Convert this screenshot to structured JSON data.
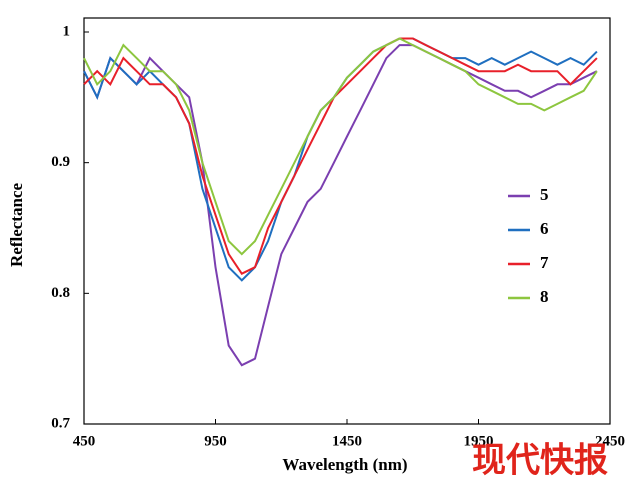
{
  "chart_data": {
    "type": "line",
    "x_label": "Wavelength (nm)",
    "y_label": "Reflectance",
    "x": [
      450,
      500,
      550,
      600,
      650,
      700,
      750,
      800,
      850,
      900,
      950,
      1000,
      1050,
      1100,
      1150,
      1200,
      1250,
      1300,
      1350,
      1400,
      1450,
      1500,
      1550,
      1600,
      1650,
      1700,
      1750,
      1800,
      1850,
      1900,
      1950,
      2000,
      2050,
      2100,
      2150,
      2200,
      2250,
      2300,
      2350,
      2400
    ],
    "series": [
      {
        "name": "5",
        "color": "#7b3fb0",
        "values": [
          0.97,
          0.95,
          0.98,
          0.97,
          0.96,
          0.98,
          0.97,
          0.96,
          0.95,
          0.9,
          0.82,
          0.76,
          0.745,
          0.75,
          0.79,
          0.83,
          0.85,
          0.87,
          0.88,
          0.9,
          0.92,
          0.94,
          0.96,
          0.98,
          0.99,
          0.99,
          0.985,
          0.98,
          0.975,
          0.97,
          0.965,
          0.96,
          0.955,
          0.955,
          0.95,
          0.955,
          0.96,
          0.96,
          0.965,
          0.97
        ]
      },
      {
        "name": "6",
        "color": "#1f6fc0",
        "values": [
          0.97,
          0.95,
          0.98,
          0.97,
          0.96,
          0.97,
          0.96,
          0.95,
          0.93,
          0.88,
          0.85,
          0.82,
          0.81,
          0.82,
          0.84,
          0.87,
          0.89,
          0.92,
          0.94,
          0.95,
          0.965,
          0.975,
          0.985,
          0.99,
          0.995,
          0.995,
          0.99,
          0.985,
          0.98,
          0.98,
          0.975,
          0.98,
          0.975,
          0.98,
          0.985,
          0.98,
          0.975,
          0.98,
          0.975,
          0.985
        ]
      },
      {
        "name": "7",
        "color": "#e8202a",
        "values": [
          0.96,
          0.97,
          0.96,
          0.98,
          0.97,
          0.96,
          0.96,
          0.95,
          0.93,
          0.89,
          0.86,
          0.83,
          0.815,
          0.82,
          0.85,
          0.87,
          0.89,
          0.91,
          0.93,
          0.95,
          0.96,
          0.97,
          0.98,
          0.99,
          0.995,
          0.995,
          0.99,
          0.985,
          0.98,
          0.975,
          0.97,
          0.97,
          0.97,
          0.975,
          0.97,
          0.97,
          0.97,
          0.96,
          0.97,
          0.98
        ]
      },
      {
        "name": "8",
        "color": "#8dc63f",
        "values": [
          0.98,
          0.96,
          0.97,
          0.99,
          0.98,
          0.97,
          0.97,
          0.96,
          0.94,
          0.9,
          0.87,
          0.84,
          0.83,
          0.84,
          0.86,
          0.88,
          0.9,
          0.92,
          0.94,
          0.95,
          0.965,
          0.975,
          0.985,
          0.99,
          0.995,
          0.99,
          0.985,
          0.98,
          0.975,
          0.97,
          0.96,
          0.955,
          0.95,
          0.945,
          0.945,
          0.94,
          0.945,
          0.95,
          0.955,
          0.97
        ]
      }
    ],
    "xlim": [
      450,
      2450
    ],
    "xticks": [
      450,
      950,
      1450,
      1950,
      2450
    ],
    "ylim": [
      0.7,
      1.0
    ],
    "yticks": [
      0.7,
      0.8,
      0.9,
      1
    ],
    "legend": "right",
    "watermark": "现代快报"
  }
}
